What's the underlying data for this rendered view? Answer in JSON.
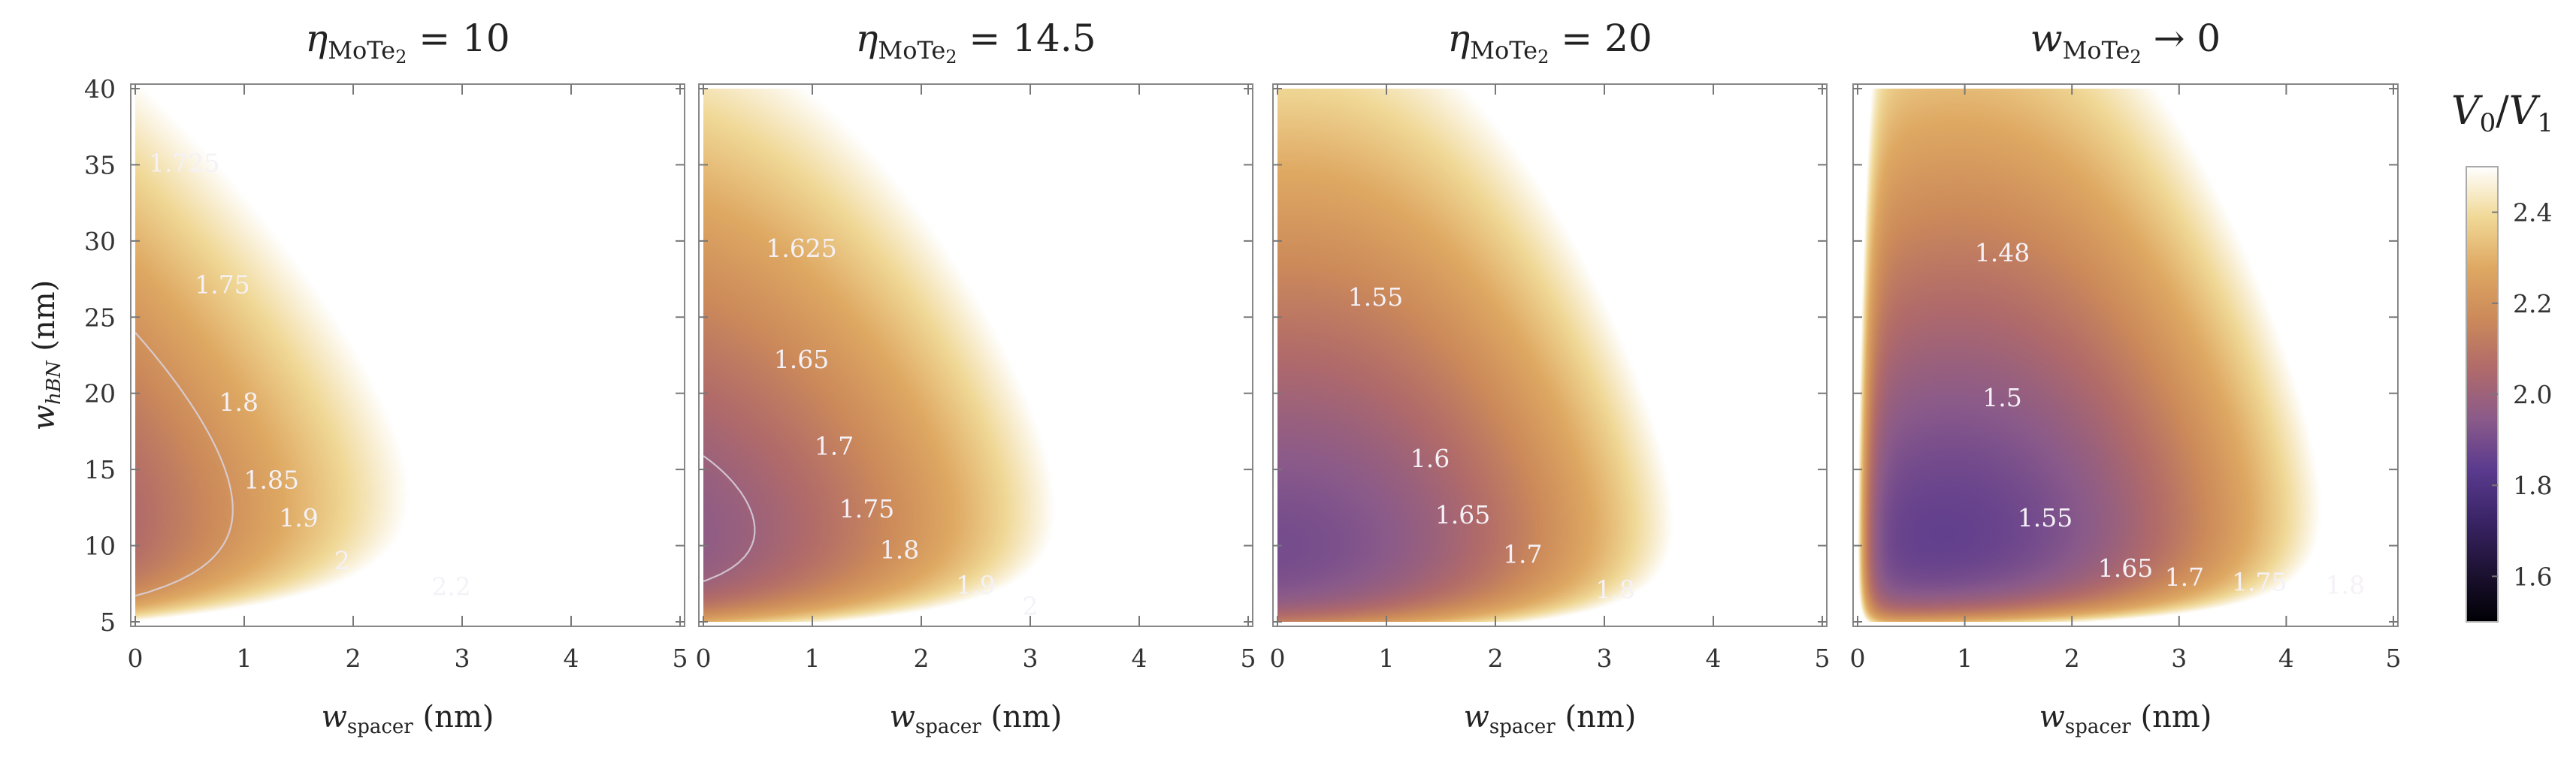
{
  "chart_data": [
    {
      "type": "heatmap",
      "title_symbol": "η",
      "title_sub": "MoTe",
      "title_sub2": "2",
      "title_rel": " = ",
      "title_value": "10",
      "xlabel_symbol": "w",
      "xlabel_sub": "spacer",
      "xlabel_unit": " (nm)",
      "ylabel_symbol": "w",
      "ylabel_sub": "hBN",
      "ylabel_unit": " (nm)",
      "xlim": [
        0,
        5
      ],
      "ylim": [
        5,
        40
      ],
      "xticks": [
        "0",
        "1",
        "2",
        "3",
        "4",
        "5"
      ],
      "yticks": [
        "5",
        "10",
        "15",
        "20",
        "25",
        "30",
        "35",
        "40"
      ],
      "field": {
        "base": 1.645,
        "a": 0.012,
        "x0": 0.35,
        "b": 0.13,
        "c": 0.02,
        "d": 1.55,
        "y0": 3.0,
        "floor": 0
      },
      "contour_levels": [
        1.725,
        1.75,
        1.8,
        1.85,
        1.9,
        2,
        2.2
      ],
      "contour_labels": [
        {
          "text": "1.725",
          "x": 0.45,
          "y": 35.1
        },
        {
          "text": "1.75",
          "x": 0.8,
          "y": 27.1
        },
        {
          "text": "1.8",
          "x": 0.95,
          "y": 19.4
        },
        {
          "text": "1.85",
          "x": 1.25,
          "y": 14.3
        },
        {
          "text": "1.9",
          "x": 1.5,
          "y": 11.8
        },
        {
          "text": "2",
          "x": 1.9,
          "y": 9.0
        },
        {
          "text": "2.2",
          "x": 2.9,
          "y": 7.3
        }
      ]
    },
    {
      "type": "heatmap",
      "title_symbol": "η",
      "title_sub": "MoTe",
      "title_sub2": "2",
      "title_rel": " = ",
      "title_value": "14.5",
      "xlabel_symbol": "w",
      "xlabel_sub": "spacer",
      "xlabel_unit": " (nm)",
      "xlim": [
        0,
        5
      ],
      "ylim": [
        5,
        40
      ],
      "xticks": [
        "0",
        "1",
        "2",
        "3",
        "4",
        "5"
      ],
      "yticks": [],
      "field": {
        "base": 1.58,
        "a": 0.03,
        "x0": 0.55,
        "b": 0.083,
        "c": 0.02,
        "d": 1.2,
        "y0": 3.0,
        "floor": 0
      },
      "contour_levels": [
        1.625,
        1.65,
        1.7,
        1.75,
        1.8,
        1.9,
        2
      ],
      "contour_labels": [
        {
          "text": "1.625",
          "x": 0.9,
          "y": 29.5
        },
        {
          "text": "1.65",
          "x": 0.9,
          "y": 22.2
        },
        {
          "text": "1.7",
          "x": 1.2,
          "y": 16.5
        },
        {
          "text": "1.75",
          "x": 1.5,
          "y": 12.4
        },
        {
          "text": "1.8",
          "x": 1.8,
          "y": 9.7
        },
        {
          "text": "1.9",
          "x": 2.5,
          "y": 7.4
        },
        {
          "text": "2",
          "x": 3.0,
          "y": 6.0
        }
      ]
    },
    {
      "type": "heatmap",
      "title_symbol": "η",
      "title_sub": "MoTe",
      "title_sub2": "2",
      "title_rel": " = ",
      "title_value": "20",
      "xlabel_symbol": "w",
      "xlabel_sub": "spacer",
      "xlabel_unit": " (nm)",
      "xlim": [
        0,
        5
      ],
      "ylim": [
        5,
        40
      ],
      "xticks": [
        "0",
        "1",
        "2",
        "3",
        "4",
        "5"
      ],
      "yticks": [],
      "field": {
        "base": 1.535,
        "a": 0.045,
        "x0": 0.75,
        "b": 0.052,
        "c": 0.02,
        "d": 0.95,
        "y0": 3.0,
        "floor": 0
      },
      "contour_levels": [
        1.55,
        1.6,
        1.65,
        1.7,
        1.8
      ],
      "contour_labels": [
        {
          "text": "1.55",
          "x": 0.9,
          "y": 26.3
        },
        {
          "text": "1.6",
          "x": 1.4,
          "y": 15.7
        },
        {
          "text": "1.65",
          "x": 1.7,
          "y": 12.0
        },
        {
          "text": "1.7",
          "x": 2.25,
          "y": 9.4
        },
        {
          "text": "1.8",
          "x": 3.1,
          "y": 7.1
        }
      ]
    },
    {
      "type": "heatmap",
      "title_symbol": "w",
      "title_sub": "MoTe",
      "title_sub2": "2",
      "title_rel": " → ",
      "title_value": "0",
      "xlabel_symbol": "w",
      "xlabel_sub": "spacer",
      "xlabel_unit": " (nm)",
      "xlim": [
        0,
        5
      ],
      "ylim": [
        5,
        40
      ],
      "xticks": [
        "0",
        "1",
        "2",
        "3",
        "4",
        "5"
      ],
      "yticks": [],
      "field": {
        "base": 1.465,
        "a": 0.052,
        "x0": 1.2,
        "b": 0.024,
        "c": 0.02,
        "d": 0.95,
        "y0": 3.5,
        "floor": 1.5,
        "edgeA": 0.65,
        "edgeK": 0.09
      },
      "contour_levels": [
        1.48,
        1.5,
        1.55,
        1.65,
        1.7,
        1.75,
        1.8
      ],
      "contour_labels": [
        {
          "text": "1.48",
          "x": 1.35,
          "y": 29.2
        },
        {
          "text": "1.5",
          "x": 1.35,
          "y": 19.7
        },
        {
          "text": "1.55",
          "x": 1.75,
          "y": 11.8
        },
        {
          "text": "1.65",
          "x": 2.5,
          "y": 8.5
        },
        {
          "text": "1.7",
          "x": 3.05,
          "y": 7.9
        },
        {
          "text": "1.75",
          "x": 3.75,
          "y": 7.6
        },
        {
          "text": "1.8",
          "x": 4.55,
          "y": 7.4
        }
      ]
    }
  ],
  "colorbar": {
    "title_symbol": "V",
    "title_sub": "0",
    "title_slash": "/",
    "title_symbol2": "V",
    "title_sub2": "1",
    "range": [
      1.5,
      2.5
    ],
    "tick_values": [
      1.6,
      1.8,
      2.0,
      2.2,
      2.4
    ],
    "tick_labels": [
      "1.6",
      "1.8",
      "2.0",
      "2.2",
      "2.4"
    ],
    "colormap": [
      "#000004",
      "#1d1233",
      "#3a2466",
      "#5a3a8e",
      "#8a5a8a",
      "#b06a6a",
      "#cc8a5a",
      "#dea862",
      "#f0d896",
      "#ffffff"
    ]
  }
}
